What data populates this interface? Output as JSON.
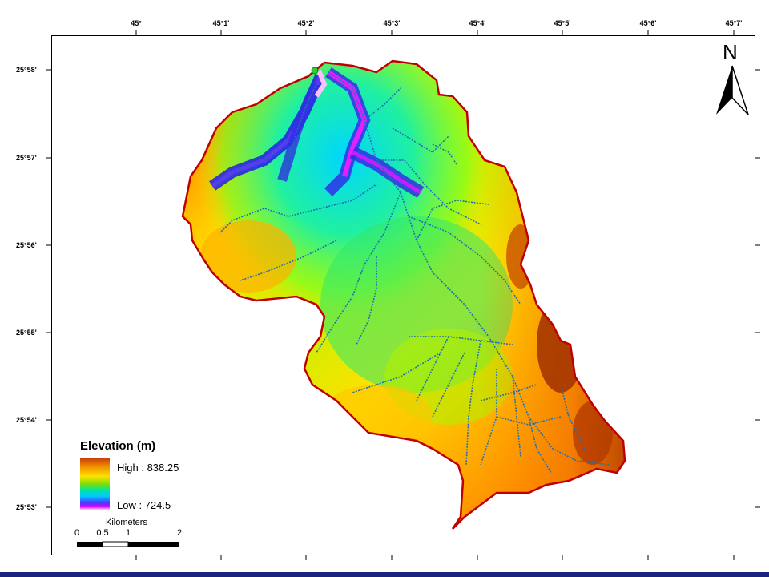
{
  "map": {
    "longitude_ticks": [
      "45°",
      "45°1'",
      "45°2'",
      "45°3'",
      "45°4'",
      "45°5'",
      "45°6'",
      "45°7'"
    ],
    "latitude_ticks": [
      "25°58'",
      "25°57'",
      "25°56'",
      "25°55'",
      "25°54'",
      "25°53'"
    ]
  },
  "north_arrow": {
    "letter": "N"
  },
  "legend": {
    "title": "Elevation (m)",
    "high_label": "High : 838.25",
    "low_label": "Low : 724.5",
    "ramp_colors": [
      "#c8400a",
      "#f08a00",
      "#ffe100",
      "#7dde00",
      "#00e5a0",
      "#00c8ff",
      "#4040ff",
      "#d000ff",
      "#ffd0ff"
    ]
  },
  "scale_bar": {
    "unit_label": "Kilometers",
    "tick_labels": [
      "0",
      "0.5",
      "1",
      "2"
    ]
  },
  "colors": {
    "boundary": "#c00000",
    "streams": "#1f6fb5",
    "outlet": "#33cc33",
    "bottom_bar": "#1a237e"
  }
}
